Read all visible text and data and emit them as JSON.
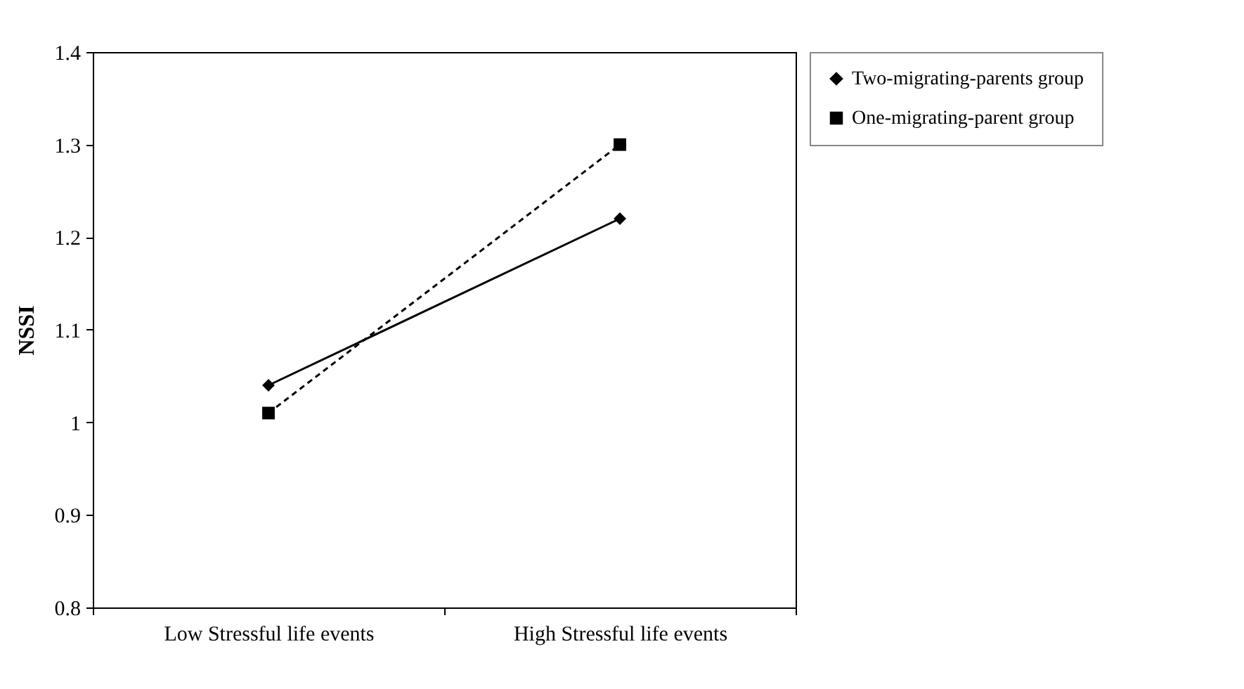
{
  "chart_data": {
    "type": "line",
    "ylabel": "NSSI",
    "categories": [
      "Low Stressful life events",
      "High Stressful life events"
    ],
    "series": [
      {
        "name": "Two-migrating-parents group",
        "color": "#000000",
        "values": [
          1.04,
          1.22
        ],
        "marker": "diamond",
        "line_style": "solid"
      },
      {
        "name": "One-migrating-parent group",
        "color": "#000000",
        "values": [
          1.01,
          1.3
        ],
        "marker": "square",
        "line_style": "dashed"
      }
    ],
    "ylim": [
      0.8,
      1.4
    ],
    "yticks": [
      0.8,
      0.9,
      1,
      1.1,
      1.2,
      1.3,
      1.4
    ],
    "grid": false,
    "legend": "top right"
  }
}
